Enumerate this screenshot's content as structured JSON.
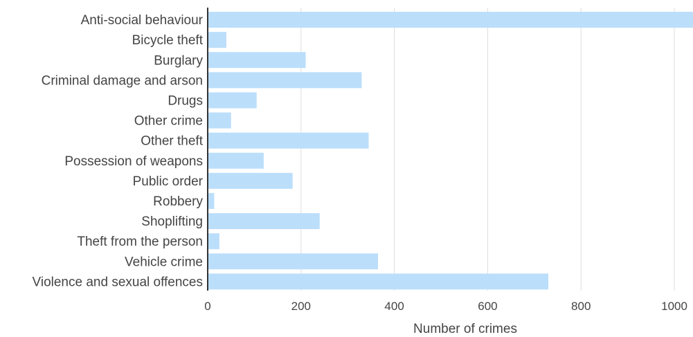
{
  "chart_data": {
    "type": "bar",
    "orientation": "horizontal",
    "categories": [
      "Anti-social behaviour",
      "Bicycle theft",
      "Burglary",
      "Criminal damage and arson",
      "Drugs",
      "Other crime",
      "Other theft",
      "Possession of weapons",
      "Public order",
      "Robbery",
      "Shoplifting",
      "Theft from the person",
      "Vehicle crime",
      "Violence and sexual offences"
    ],
    "values": [
      1050,
      40,
      210,
      330,
      105,
      50,
      345,
      120,
      182,
      14,
      240,
      25,
      365,
      730
    ],
    "xlabel": "Number of crimes",
    "ylabel": "",
    "xlim": [
      0,
      1040
    ],
    "xticks": [
      0,
      200,
      400,
      600,
      800,
      1000
    ],
    "xtick_labels": [
      "0",
      "200",
      "400",
      "600",
      "800",
      "1000"
    ],
    "grid": "vertical",
    "bar_color": "#bbdefb",
    "axis_color": "#333333",
    "grid_color": "#dddddd",
    "text_color": "#444444"
  }
}
